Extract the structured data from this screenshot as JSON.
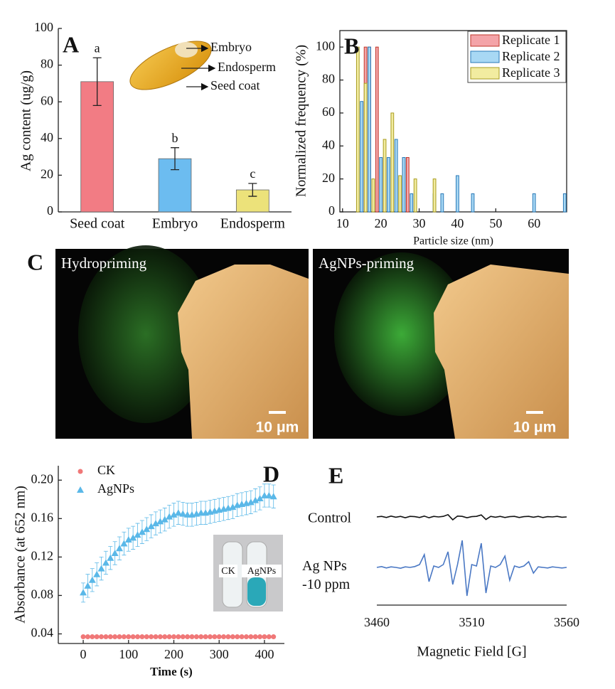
{
  "chart_data": [
    {
      "panel": "A",
      "type": "bar",
      "ylabel": "Ag content (ug/g)",
      "categories": [
        "Seed coat",
        "Embryo",
        "Endosperm"
      ],
      "values": [
        71,
        29,
        12
      ],
      "errors": [
        13,
        6,
        3.5
      ],
      "significance": [
        "a",
        "b",
        "c"
      ],
      "colors": [
        "#f27c84",
        "#6cbcf0",
        "#ece27a"
      ],
      "ylim": [
        0,
        100
      ],
      "yticks": [
        0,
        20,
        40,
        60,
        80,
        100
      ],
      "annotations": [
        "Embryo",
        "Endosperm",
        "Seed coat"
      ]
    },
    {
      "panel": "B",
      "type": "bar",
      "xlabel": "Particle size (nm)",
      "ylabel": "Normalized frequency (%)",
      "xlim": [
        9.3,
        68.5
      ],
      "xticks": [
        10,
        20,
        30,
        40,
        50,
        60
      ],
      "ylim": [
        0,
        110
      ],
      "yticks": [
        0,
        20,
        40,
        60,
        80,
        100
      ],
      "legend": "upper right",
      "series": [
        {
          "name": "Replicate 1",
          "color": "#f4a4a8",
          "edgecolor": "#c0392b",
          "x": [
            16,
            17,
            19,
            21,
            26,
            27
          ],
          "values": [
            100,
            100,
            100,
            33,
            33,
            33
          ]
        },
        {
          "name": "Replicate 2",
          "color": "#a8d8f4",
          "edgecolor": "#2a7ab8",
          "x": [
            15,
            17,
            20,
            22,
            24,
            26,
            28,
            34,
            36,
            40,
            44,
            60,
            68
          ],
          "values": [
            67,
            100,
            33,
            33,
            44,
            33,
            11,
            11,
            11,
            22,
            11,
            11,
            11
          ]
        },
        {
          "name": "Replicate 3",
          "color": "#f2eca0",
          "edgecolor": "#a89c20",
          "x": [
            14,
            16,
            18,
            21,
            23,
            25,
            29,
            34
          ],
          "values": [
            100,
            78,
            20,
            44,
            60,
            22,
            20,
            20
          ]
        }
      ]
    },
    {
      "panel": "D",
      "type": "scatter",
      "xlabel": "Time (s)",
      "ylabel": "Absorbance (at 652 nm)",
      "xlim": [
        -55,
        444
      ],
      "xticks": [
        0,
        100,
        200,
        300,
        400
      ],
      "ylim": [
        0.03,
        0.215
      ],
      "yticks": [
        0.04,
        0.08,
        0.12,
        0.16,
        {
          "value": 0.2,
          "label": "0.20"
        }
      ],
      "legend": "upper left",
      "inset_labels": [
        "CK",
        "AgNPs"
      ],
      "x": [
        0,
        10,
        20,
        30,
        40,
        50,
        60,
        70,
        80,
        90,
        100,
        110,
        120,
        130,
        140,
        150,
        160,
        170,
        180,
        190,
        200,
        210,
        220,
        230,
        240,
        250,
        260,
        270,
        280,
        290,
        300,
        310,
        320,
        330,
        340,
        350,
        360,
        370,
        380,
        390,
        400,
        410,
        420
      ],
      "series": [
        {
          "name": "CK",
          "color": "#f07878",
          "marker": "circle",
          "values": [
            0.037,
            0.037,
            0.037,
            0.037,
            0.037,
            0.037,
            0.037,
            0.037,
            0.037,
            0.037,
            0.037,
            0.037,
            0.037,
            0.037,
            0.037,
            0.037,
            0.037,
            0.037,
            0.037,
            0.037,
            0.037,
            0.037,
            0.037,
            0.037,
            0.037,
            0.037,
            0.037,
            0.037,
            0.037,
            0.037,
            0.037,
            0.037,
            0.037,
            0.037,
            0.037,
            0.037,
            0.037,
            0.037,
            0.037,
            0.037,
            0.037,
            0.037,
            0.037
          ]
        },
        {
          "name": "AgNPs",
          "color": "#5ab8e8",
          "marker": "triangle",
          "values": [
            0.083,
            0.09,
            0.096,
            0.102,
            0.108,
            0.114,
            0.119,
            0.124,
            0.129,
            0.134,
            0.138,
            0.14,
            0.143,
            0.146,
            0.149,
            0.152,
            0.155,
            0.157,
            0.159,
            0.162,
            0.164,
            0.166,
            0.165,
            0.164,
            0.164,
            0.165,
            0.166,
            0.166,
            0.167,
            0.168,
            0.169,
            0.17,
            0.171,
            0.172,
            0.174,
            0.175,
            0.176,
            0.177,
            0.179,
            0.181,
            0.184,
            0.184,
            0.183
          ],
          "errors": [
            0.01,
            0.012,
            0.012,
            0.012,
            0.012,
            0.012,
            0.012,
            0.012,
            0.012,
            0.012,
            0.012,
            0.012,
            0.012,
            0.012,
            0.012,
            0.012,
            0.012,
            0.012,
            0.012,
            0.012,
            0.012,
            0.012,
            0.012,
            0.012,
            0.012,
            0.012,
            0.012,
            0.012,
            0.012,
            0.012,
            0.012,
            0.012,
            0.012,
            0.012,
            0.012,
            0.012,
            0.012,
            0.012,
            0.012,
            0.012,
            0.012,
            0.012,
            0.012
          ]
        }
      ]
    },
    {
      "panel": "E",
      "type": "line",
      "xlabel": "Magnetic Field [G]",
      "xlim": [
        3460,
        3560
      ],
      "xticks": [
        3460,
        3510,
        3560
      ],
      "ylim": [
        -1,
        1
      ],
      "x": [
        3460,
        3462.5,
        3465,
        3467.5,
        3470,
        3472.5,
        3475,
        3477.5,
        3480,
        3482.5,
        3485,
        3487.5,
        3490,
        3492.5,
        3495,
        3497.5,
        3500,
        3502.5,
        3505,
        3507.5,
        3510,
        3512.5,
        3515,
        3517.5,
        3520,
        3522.5,
        3525,
        3527.5,
        3530,
        3532.5,
        3535,
        3537.5,
        3540,
        3542.5,
        3545,
        3547.5,
        3550,
        3552.5,
        3555,
        3557.5,
        3560
      ],
      "series": [
        {
          "name": "Control",
          "color": "#111111",
          "values": [
            0,
            0.02,
            -0.02,
            0.03,
            -0.01,
            0.02,
            -0.03,
            0.02,
            0.01,
            -0.02,
            0.03,
            -0.03,
            0.02,
            0,
            0.02,
            0.08,
            -0.1,
            0.03,
            0.02,
            -0.03,
            0.01,
            0.02,
            0.07,
            -0.09,
            0.02,
            -0.01,
            0.02,
            -0.02,
            0.01,
            0.02,
            -0.02,
            0.01,
            0.02,
            -0.01,
            0.02,
            -0.02,
            0.01,
            0,
            0.02,
            -0.01,
            0
          ]
        },
        {
          "name": "Ag NPs -10 ppm",
          "color": "#4a78c4",
          "values": [
            0,
            0.03,
            -0.02,
            0.02,
            0,
            -0.03,
            0.02,
            0,
            0.03,
            0.1,
            0.45,
            -0.5,
            0.05,
            0,
            0.1,
            0.55,
            -0.6,
            0.1,
            0.95,
            -1,
            0.1,
            0.05,
            0.85,
            -0.9,
            0.05,
            0,
            0.1,
            0.4,
            -0.45,
            0.05,
            0,
            0.05,
            0.2,
            -0.2,
            0.02,
            0,
            -0.02,
            0.02,
            0,
            -0.02,
            0
          ]
        }
      ]
    }
  ],
  "micrographs": {
    "panel": "C",
    "images": [
      {
        "title": "Hydropriming",
        "scale_bar": "10 μm"
      },
      {
        "title": "AgNPs-priming",
        "scale_bar": "10 μm"
      }
    ]
  }
}
